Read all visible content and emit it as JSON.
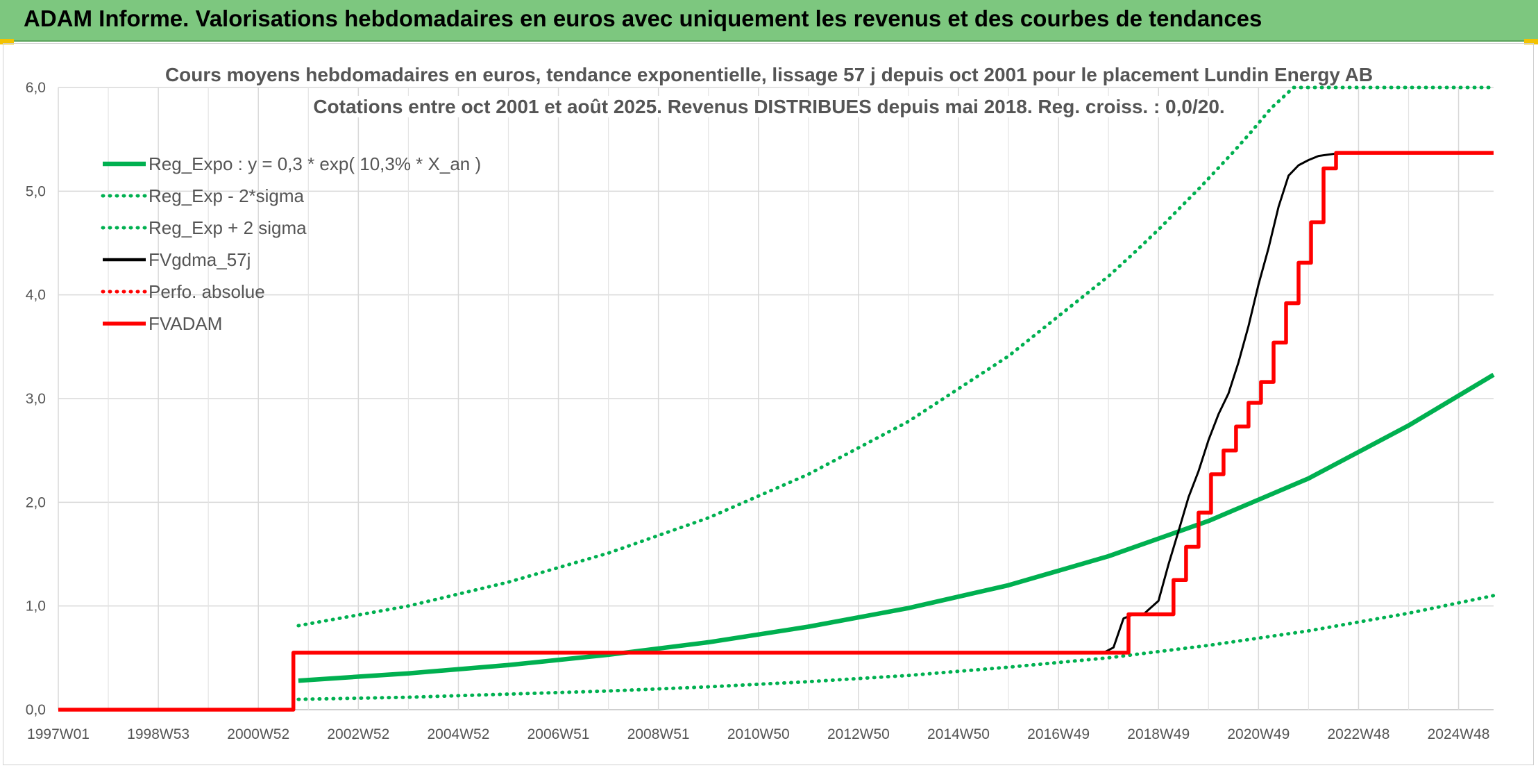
{
  "banner": {
    "title": "ADAM Informe. Valorisations hebdomadaires en euros avec uniquement les revenus et des courbes de tendances"
  },
  "chart_data": {
    "type": "line",
    "title": "Cours moyens hebdomadaires en euros, tendance exponentielle, lissage 57 j depuis oct 2001 pour le placement Lundin Energy AB",
    "subtitle": "Cotations entre oct 2001 et août 2025. Revenus DISTRIBUES depuis mai 2018. Reg. croiss. : 0,0/20.",
    "ylim": [
      0,
      6
    ],
    "yticks": [
      "0,0",
      "1,0",
      "2,0",
      "3,0",
      "4,0",
      "5,0",
      "6,0"
    ],
    "xlim": [
      1997.0,
      2025.7
    ],
    "xticks": [
      {
        "label": "1997W01",
        "x": 1997.0
      },
      {
        "label": "1998W53",
        "x": 1999.0
      },
      {
        "label": "2000W52",
        "x": 2001.0
      },
      {
        "label": "2002W52",
        "x": 2003.0
      },
      {
        "label": "2004W52",
        "x": 2005.0
      },
      {
        "label": "2006W51",
        "x": 2007.0
      },
      {
        "label": "2008W51",
        "x": 2009.0
      },
      {
        "label": "2010W50",
        "x": 2011.0
      },
      {
        "label": "2012W50",
        "x": 2013.0
      },
      {
        "label": "2014W50",
        "x": 2015.0
      },
      {
        "label": "2016W49",
        "x": 2017.0
      },
      {
        "label": "2018W49",
        "x": 2019.0
      },
      {
        "label": "2020W49",
        "x": 2021.0
      },
      {
        "label": "2022W48",
        "x": 2023.0
      },
      {
        "label": "2024W48",
        "x": 2025.0
      }
    ],
    "grid": true,
    "legend_position": "top-left",
    "series": [
      {
        "name": "Reg_Expo : y = 0,3 * exp( 10,3% *  X_an )",
        "color": "#00b050",
        "style": "solid",
        "x": [
          2001.8,
          2004.0,
          2006.0,
          2008.0,
          2010.0,
          2012.0,
          2014.0,
          2016.0,
          2018.0,
          2020.0,
          2022.0,
          2024.0,
          2025.7
        ],
        "y": [
          0.28,
          0.35,
          0.43,
          0.53,
          0.65,
          0.8,
          0.98,
          1.2,
          1.48,
          1.82,
          2.23,
          2.74,
          3.23
        ]
      },
      {
        "name": "Reg_Exp - 2*sigma",
        "color": "#00b050",
        "style": "dotted",
        "x": [
          2001.8,
          2004.0,
          2006.0,
          2008.0,
          2010.0,
          2012.0,
          2014.0,
          2016.0,
          2018.0,
          2020.0,
          2022.0,
          2024.0,
          2025.7
        ],
        "y": [
          0.1,
          0.12,
          0.15,
          0.18,
          0.22,
          0.27,
          0.33,
          0.41,
          0.5,
          0.62,
          0.76,
          0.93,
          1.1
        ]
      },
      {
        "name": "Reg_Exp + 2 sigma",
        "color": "#00b050",
        "style": "dotted",
        "x": [
          2001.8,
          2004.0,
          2006.0,
          2008.0,
          2010.0,
          2012.0,
          2014.0,
          2016.0,
          2018.0,
          2018.5,
          2019.0,
          2019.45,
          2019.8,
          2020.15,
          2020.5,
          2020.85,
          2021.25,
          2021.7,
          2022.0,
          2022.5,
          2023.0,
          2023.5,
          2024.0,
          2024.5,
          2025.0,
          2025.7
        ],
        "y": [
          0.81,
          1.0,
          1.23,
          1.51,
          1.85,
          2.27,
          2.78,
          3.41,
          4.18,
          4.4,
          4.63,
          4.85,
          5.02,
          5.2,
          5.38,
          5.57,
          5.8,
          6.0,
          6.0,
          6.0,
          6.0,
          6.0,
          6.0,
          6.0,
          6.0,
          6.0
        ]
      },
      {
        "name": "FVgdma_57j",
        "color": "#000000",
        "style": "solid",
        "x": [
          1997.0,
          2001.7,
          2001.7,
          2017.9,
          2018.1,
          2018.3,
          2018.5,
          2018.7,
          2019.0,
          2019.2,
          2019.4,
          2019.6,
          2019.8,
          2020.0,
          2020.2,
          2020.4,
          2020.6,
          2020.8,
          2021.0,
          2021.2,
          2021.4,
          2021.6,
          2021.8,
          2022.0,
          2022.2,
          2022.5,
          2022.8,
          2025.7
        ],
        "y": [
          0.0,
          0.0,
          0.55,
          0.55,
          0.6,
          0.88,
          0.92,
          0.92,
          1.05,
          1.4,
          1.72,
          2.05,
          2.3,
          2.6,
          2.85,
          3.05,
          3.35,
          3.7,
          4.1,
          4.45,
          4.85,
          5.15,
          5.25,
          5.3,
          5.34,
          5.36,
          5.37,
          5.37
        ]
      },
      {
        "name": "Perfo. absolue",
        "color": "#ff0000",
        "style": "dotted",
        "x": [],
        "y": []
      },
      {
        "name": "FVADAM",
        "color": "#ff0000",
        "style": "solid",
        "x": [
          1997.0,
          2001.7,
          2001.7,
          2018.4,
          2018.4,
          2019.3,
          2019.3,
          2019.55,
          2019.55,
          2019.8,
          2019.8,
          2020.05,
          2020.05,
          2020.3,
          2020.3,
          2020.55,
          2020.55,
          2020.8,
          2020.8,
          2021.05,
          2021.05,
          2021.3,
          2021.3,
          2021.55,
          2021.55,
          2021.8,
          2021.8,
          2022.05,
          2022.05,
          2022.3,
          2022.3,
          2022.55,
          2022.55,
          2025.7
        ],
        "y": [
          0.0,
          0.0,
          0.55,
          0.55,
          0.92,
          0.92,
          1.25,
          1.25,
          1.57,
          1.57,
          1.9,
          1.9,
          2.27,
          2.27,
          2.5,
          2.5,
          2.73,
          2.73,
          2.96,
          2.96,
          3.16,
          3.16,
          3.54,
          3.54,
          3.92,
          3.92,
          4.31,
          4.31,
          4.7,
          4.7,
          5.22,
          5.22,
          5.37,
          5.37
        ]
      }
    ]
  }
}
